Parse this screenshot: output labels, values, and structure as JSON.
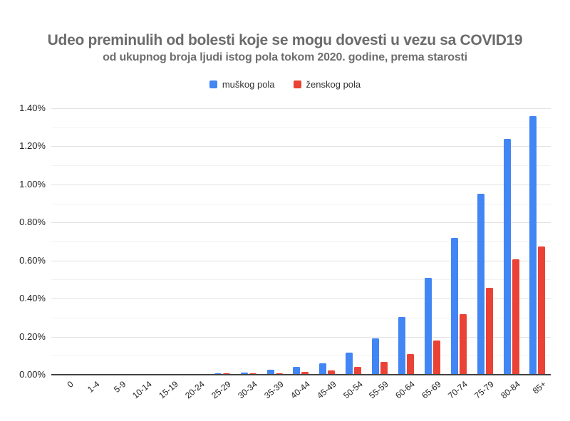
{
  "title": "Udeo preminulih od bolesti koje se mogu dovesti u vezu sa COVID19",
  "subtitle": "od ukupnog broja ljudi istog pola tokom 2020. godine, prema starosti",
  "colors": {
    "male_series": "#4285F4",
    "female_series": "#EA4335",
    "title_text": "#6b6b6b",
    "axis_text": "#212121",
    "axis_line": "#424242",
    "gridline_major": "#e2e2e2",
    "gridline_minor": "#f2f2f2",
    "background": "#ffffff"
  },
  "chart_data": {
    "type": "bar",
    "title": "Udeo preminulih od bolesti koje se mogu dovesti u vezu sa COVID19",
    "subtitle": "od ukupnog broja ljudi istog pola tokom 2020. godine, prema starosti",
    "categories": [
      "0",
      "1-4",
      "5-9",
      "10-14",
      "15-19",
      "20-24",
      "25-29",
      "30-34",
      "35-39",
      "40-44",
      "45-49",
      "50-54",
      "55-59",
      "60-64",
      "65-69",
      "70-74",
      "75-79",
      "80-84",
      "85+"
    ],
    "series": [
      {
        "name": "muškog pola",
        "color": "#4285F4",
        "values": [
          0.003,
          0.002,
          0.001,
          0.001,
          0.003,
          0.005,
          0.008,
          0.01,
          0.025,
          0.041,
          0.061,
          0.115,
          0.19,
          0.305,
          0.51,
          0.72,
          0.95,
          1.24,
          1.36
        ]
      },
      {
        "name": "ženskog pola",
        "color": "#EA4335",
        "values": [
          0.002,
          0.002,
          0.001,
          0.001,
          0.001,
          0.003,
          0.006,
          0.007,
          0.009,
          0.016,
          0.024,
          0.04,
          0.069,
          0.11,
          0.178,
          0.32,
          0.455,
          0.605,
          0.675
        ]
      }
    ],
    "xlabel": "",
    "ylabel": "",
    "unit": "%",
    "ylim": [
      0,
      1.4
    ],
    "y_ticks": [
      {
        "value": 0.0,
        "label": "0.00%"
      },
      {
        "value": 0.2,
        "label": "0.20%"
      },
      {
        "value": 0.4,
        "label": "0.40%"
      },
      {
        "value": 0.6,
        "label": "0.60%"
      },
      {
        "value": 0.8,
        "label": "0.80%"
      },
      {
        "value": 1.0,
        "label": "1.00%"
      },
      {
        "value": 1.2,
        "label": "1.20%"
      },
      {
        "value": 1.4,
        "label": "1.40%"
      }
    ],
    "minor_gridline_step": 0.1,
    "grid": true,
    "legend_position": "top",
    "x_label_rotation_deg": -40
  }
}
